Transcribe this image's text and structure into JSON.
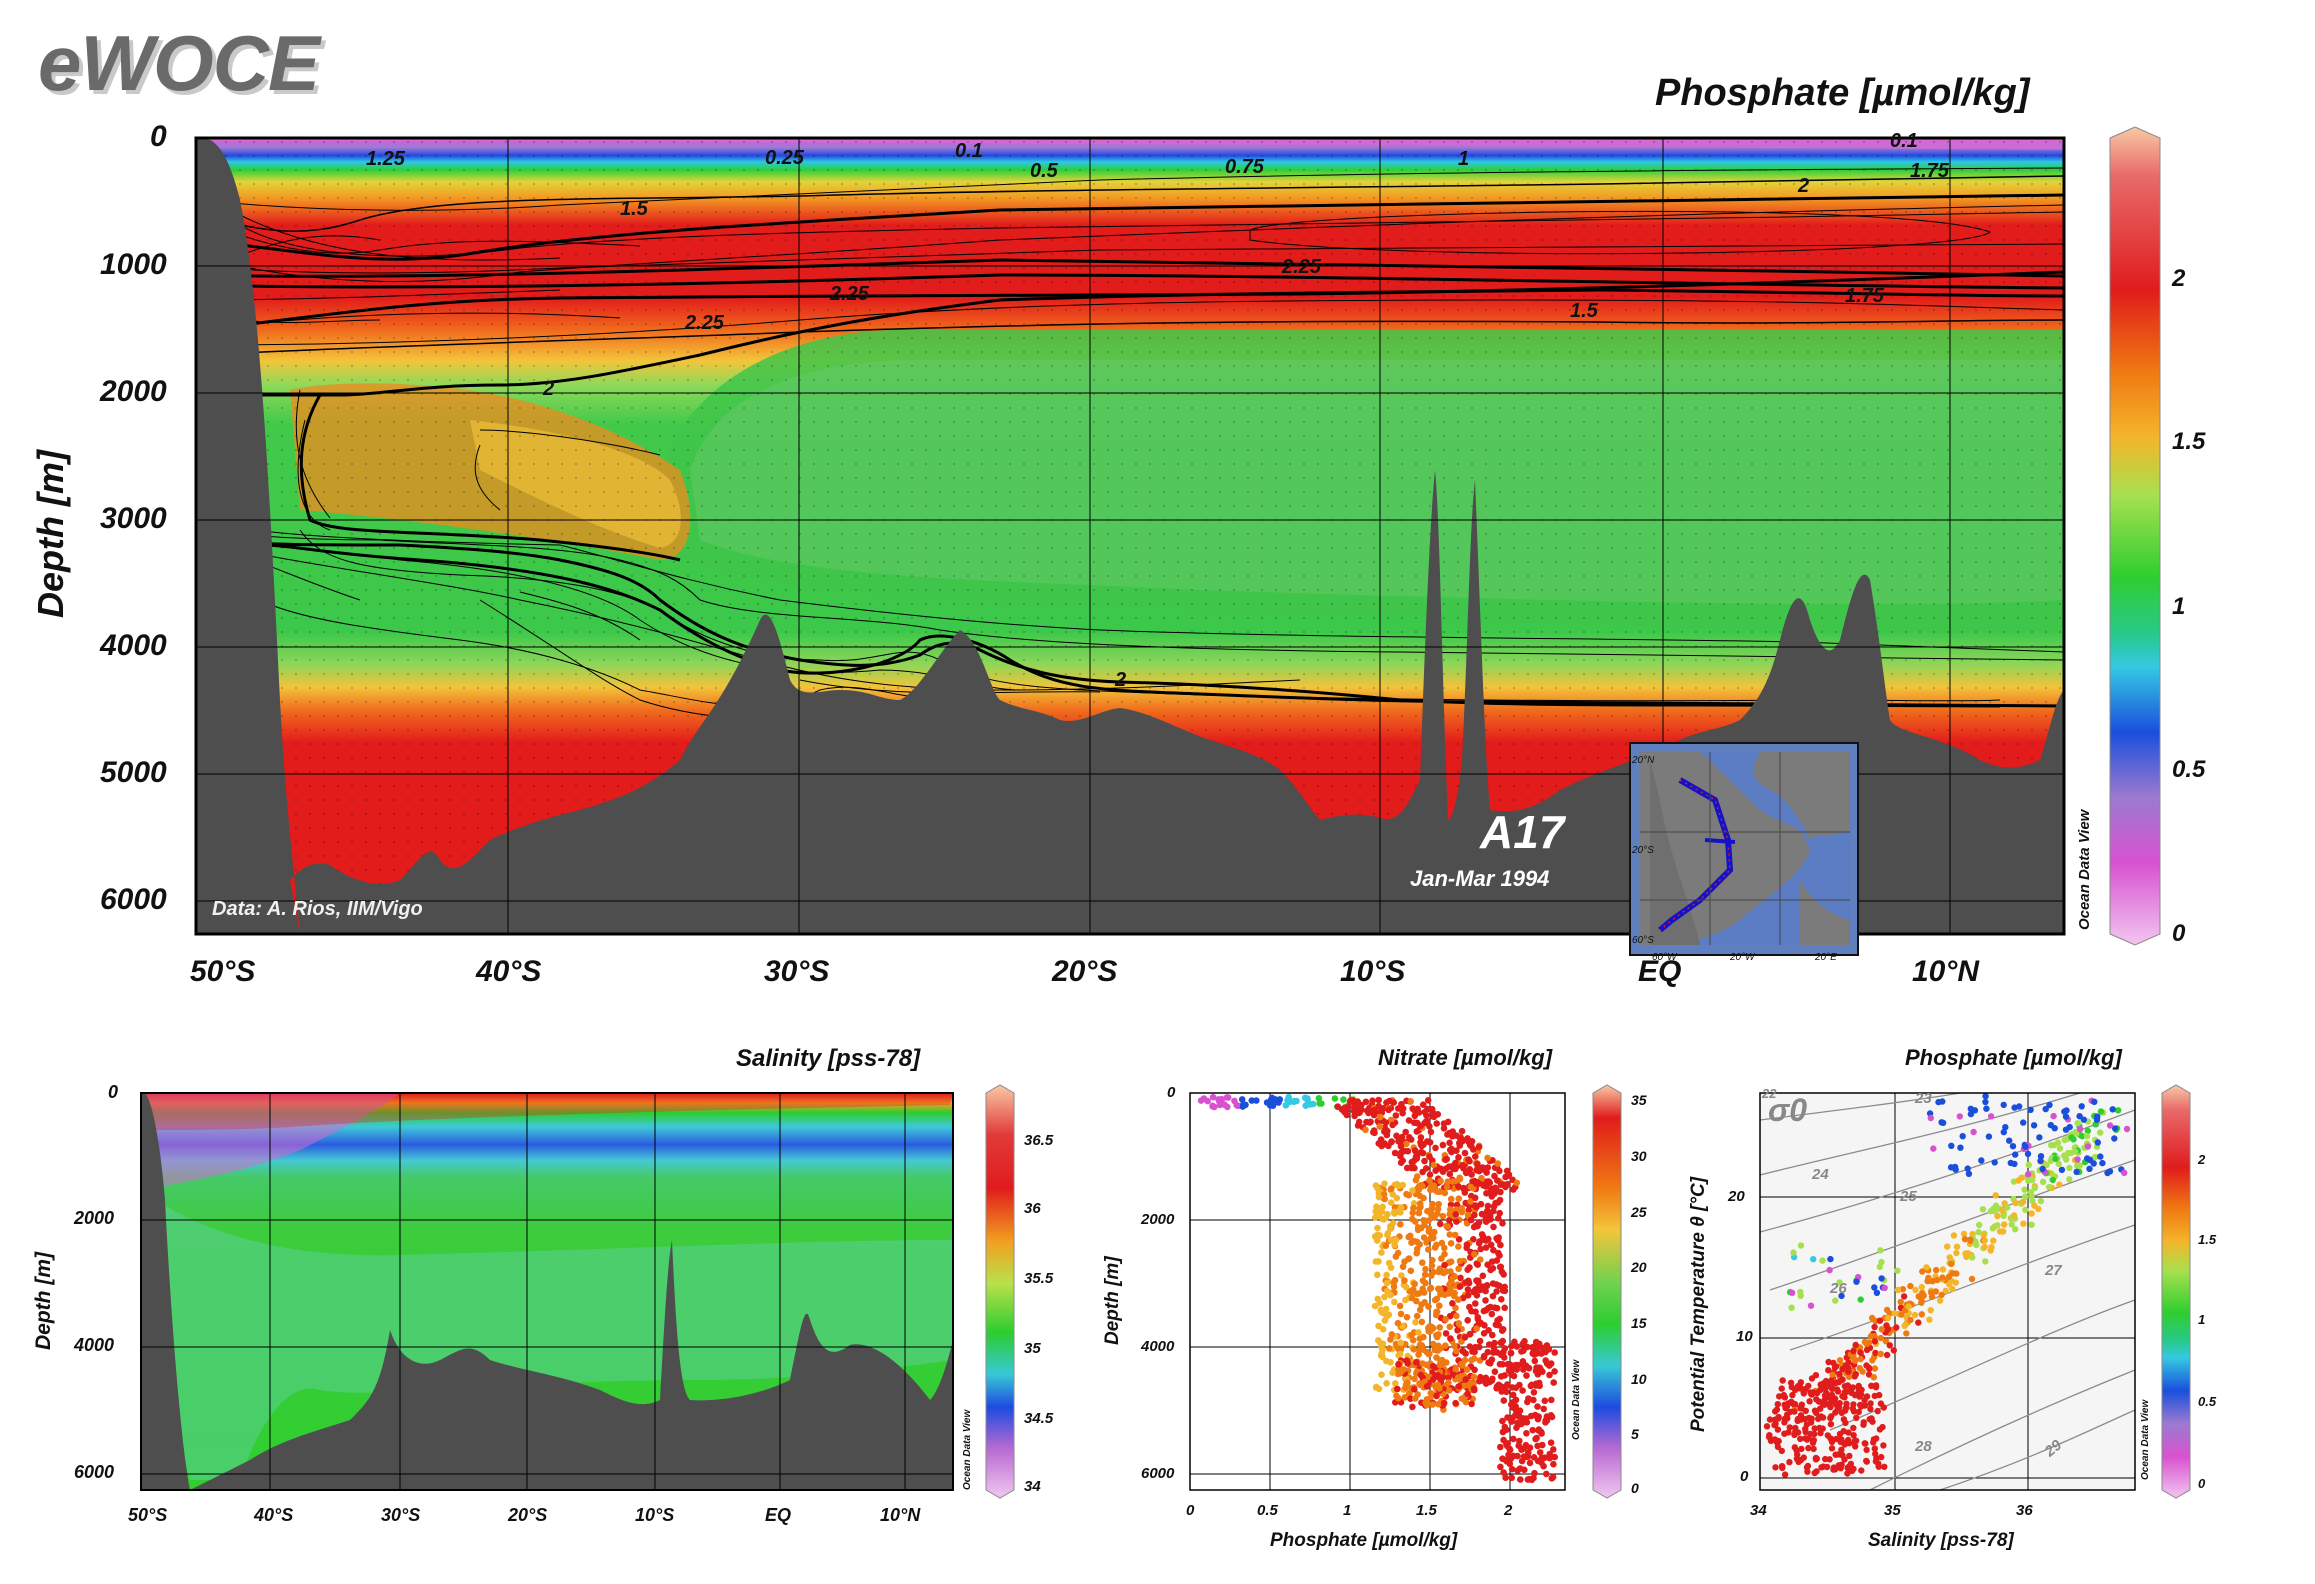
{
  "logo": "eWOCE",
  "chart_data": [
    {
      "type": "section",
      "title": "Phosphate [µmol/kg]",
      "ylabel": "Depth [m]",
      "yticks": [
        "0",
        "1000",
        "2000",
        "3000",
        "4000",
        "5000",
        "6000"
      ],
      "xticks": [
        "50°S",
        "40°S",
        "30°S",
        "20°S",
        "10°S",
        "EQ",
        "10°N"
      ],
      "colorbar_ticks": [
        "2",
        "1.5",
        "1",
        "0.5",
        "0"
      ],
      "colorbar_label": "Ocean Data View",
      "contour_labels": [
        "1.25",
        "0.25",
        "0.1",
        "0.5",
        "0.75",
        "1",
        "2",
        "1.75",
        "1.5",
        "2.25",
        "2.25",
        "2.25",
        "2",
        "2",
        "1.5",
        "1.75",
        "0.1"
      ],
      "credit": "Data: A. Rios, IIM/Vigo",
      "section_name": "A17",
      "section_date": "Jan-Mar 1994",
      "inset_map": {
        "lat_ticks": [
          "20°N",
          "20°S",
          "60°S"
        ],
        "lon_ticks": [
          "60°W",
          "20°W",
          "20°E"
        ]
      }
    },
    {
      "type": "section",
      "title": "Salinity [pss-78]",
      "ylabel": "Depth [m]",
      "yticks": [
        "0",
        "2000",
        "4000",
        "6000"
      ],
      "xticks": [
        "50°S",
        "40°S",
        "30°S",
        "20°S",
        "10°S",
        "EQ",
        "10°N"
      ],
      "colorbar_ticks": [
        "36.5",
        "36",
        "35.5",
        "35",
        "34.5",
        "34"
      ],
      "colorbar_label": "Ocean Data View"
    },
    {
      "type": "scatter",
      "title": "Nitrate [µmol/kg]",
      "xlabel": "Phosphate [µmol/kg]",
      "ylabel": "Depth [m]",
      "xticks": [
        "0",
        "0.5",
        "1",
        "1.5",
        "2"
      ],
      "yticks": [
        "0",
        "2000",
        "4000",
        "6000"
      ],
      "colorbar_ticks": [
        "35",
        "30",
        "25",
        "20",
        "15",
        "10",
        "5",
        "0"
      ],
      "colorbar_label": "Ocean Data View"
    },
    {
      "type": "scatter",
      "title": "Phosphate [µmol/kg]",
      "xlabel": "Salinity [pss-78]",
      "ylabel": "Potential Temperature θ [°C]",
      "xticks": [
        "34",
        "35",
        "36"
      ],
      "yticks": [
        "20",
        "10",
        "0"
      ],
      "isopycnal_labels": [
        "22",
        "23",
        "24",
        "25",
        "26",
        "27",
        "28",
        "29"
      ],
      "sigma_label": "σ0",
      "colorbar_ticks": [
        "2",
        "1.5",
        "1",
        "0.5",
        "0"
      ],
      "colorbar_label": "Ocean Data View"
    }
  ]
}
